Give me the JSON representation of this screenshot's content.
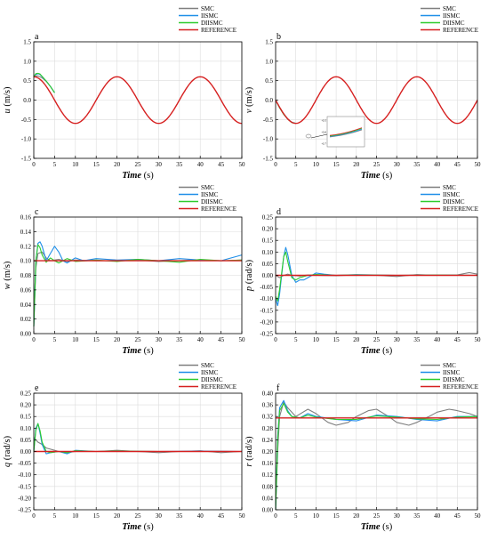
{
  "colors": {
    "SMC": "#7f7f7f",
    "IISMC": "#1f8fe8",
    "DIISMC": "#2ecc2e",
    "REFERENCE": "#d62020",
    "grid": "#dcdcdc",
    "axis": "#000000"
  },
  "legend_labels": [
    "SMC",
    "IISMC",
    "DIISMC",
    "REFERENCE"
  ],
  "chart_data": [
    {
      "panel": "a",
      "type": "line",
      "ylabel_sym": "u",
      "ylabel_unit": " (m/s)",
      "xlabel": "Time",
      "xunit": " (s)",
      "xlim": [
        0,
        50
      ],
      "ylim": [
        -1.5,
        1.5
      ],
      "yticks": [
        -1.5,
        -1.0,
        -0.5,
        0.0,
        0.5,
        1.0,
        1.5
      ],
      "xticks": [
        0,
        5,
        10,
        15,
        20,
        25,
        30,
        35,
        40,
        45,
        50
      ],
      "ydec": 1,
      "grid": true,
      "reference": "0.6cos(2*pi*t/20)",
      "series": [
        {
          "name": "SMC",
          "x": [
            0,
            0.5,
            1,
            1.5,
            2,
            3,
            4,
            5
          ],
          "y": [
            0.6,
            0.62,
            0.62,
            0.6,
            0.57,
            0.48,
            0.35,
            0.19
          ]
        },
        {
          "name": "IISMC",
          "x": [
            0,
            0.5,
            1,
            1.5,
            2,
            3,
            4,
            5
          ],
          "y": [
            0.6,
            0.66,
            0.68,
            0.66,
            0.6,
            0.49,
            0.35,
            0.19
          ]
        },
        {
          "name": "DIISMC",
          "x": [
            0,
            0.5,
            1,
            1.5,
            2,
            3,
            4,
            5
          ],
          "y": [
            0.6,
            0.68,
            0.69,
            0.67,
            0.61,
            0.49,
            0.35,
            0.19
          ]
        },
        {
          "name": "REFERENCE",
          "x": [
            0,
            2.5,
            5,
            7.5,
            10,
            12.5,
            15,
            17.5,
            20,
            22.5,
            25,
            27.5,
            30,
            32.5,
            35,
            37.5,
            40,
            42.5,
            45,
            47.5,
            50
          ],
          "y": [
            0.6,
            0.42,
            0.0,
            -0.42,
            -0.6,
            -0.42,
            0.0,
            0.42,
            0.6,
            0.42,
            0.0,
            -0.42,
            -0.6,
            -0.42,
            0.0,
            0.42,
            0.6,
            0.42,
            0.0,
            -0.42,
            -0.6
          ]
        }
      ],
      "inset": false
    },
    {
      "panel": "b",
      "type": "line",
      "ylabel_sym": "v",
      "ylabel_unit": " (m/s)",
      "xlabel": "Time",
      "xunit": " (s)",
      "xlim": [
        0,
        50
      ],
      "ylim": [
        -1.5,
        1.5
      ],
      "yticks": [
        -1.5,
        -1.0,
        -0.5,
        0.0,
        0.5,
        1.0,
        1.5
      ],
      "xticks": [
        0,
        5,
        10,
        15,
        20,
        25,
        30,
        35,
        40,
        45,
        50
      ],
      "ydec": 1,
      "grid": true,
      "reference": "0.6sin(2*pi*t/20)",
      "series": [
        {
          "name": "SMC",
          "x": [
            0,
            1,
            2,
            3,
            4,
            5
          ],
          "y": [
            0.0,
            -0.19,
            -0.35,
            -0.48,
            -0.57,
            -0.6
          ]
        },
        {
          "name": "IISMC",
          "x": [
            0,
            1,
            2,
            3,
            4,
            5
          ],
          "y": [
            0.0,
            -0.2,
            -0.36,
            -0.49,
            -0.57,
            -0.6
          ]
        },
        {
          "name": "DIISMC",
          "x": [
            0,
            1,
            2,
            3,
            4,
            5
          ],
          "y": [
            0.0,
            -0.2,
            -0.37,
            -0.49,
            -0.58,
            -0.6
          ]
        },
        {
          "name": "REFERENCE",
          "x": [
            0,
            5,
            10,
            15,
            20,
            25,
            30,
            35,
            40,
            45,
            50
          ],
          "y": [
            0.0,
            -0.6,
            0.0,
            0.6,
            0.0,
            -0.6,
            0.0,
            0.6,
            0.0,
            -0.6,
            0.0
          ]
        }
      ],
      "inset": true,
      "inset_yticks": [
        "-0.5",
        "-0.6",
        "-0.7"
      ]
    },
    {
      "panel": "c",
      "type": "line",
      "ylabel_sym": "w",
      "ylabel_unit": " (m/s)",
      "xlabel": "Time",
      "xunit": " (s)",
      "xlim": [
        0,
        50
      ],
      "ylim": [
        0.0,
        0.16
      ],
      "yticks": [
        0.0,
        0.02,
        0.04,
        0.06,
        0.08,
        0.1,
        0.12,
        0.14,
        0.16
      ],
      "xticks": [
        0,
        5,
        10,
        15,
        20,
        25,
        30,
        35,
        40,
        45,
        50
      ],
      "ydec": 2,
      "grid": true,
      "series": [
        {
          "name": "SMC",
          "x": [
            0,
            0.5,
            1,
            2,
            3,
            4,
            6,
            8,
            10,
            15,
            20,
            25,
            30,
            35,
            40,
            45,
            50
          ],
          "y": [
            0.01,
            0.09,
            0.11,
            0.112,
            0.104,
            0.1,
            0.102,
            0.099,
            0.101,
            0.1,
            0.1,
            0.101,
            0.099,
            0.1,
            0.101,
            0.1,
            0.101
          ]
        },
        {
          "name": "IISMC",
          "x": [
            0,
            0.5,
            1,
            1.5,
            2,
            3,
            4,
            5,
            6,
            7,
            8,
            10,
            12,
            15,
            20,
            25,
            30,
            35,
            40,
            45,
            50
          ],
          "y": [
            0.01,
            0.1,
            0.124,
            0.126,
            0.12,
            0.1,
            0.11,
            0.12,
            0.112,
            0.1,
            0.097,
            0.104,
            0.1,
            0.103,
            0.101,
            0.102,
            0.1,
            0.103,
            0.101,
            0.1,
            0.108
          ]
        },
        {
          "name": "DIISMC",
          "x": [
            0,
            0.5,
            1,
            1.5,
            2,
            3,
            4,
            5,
            6,
            8,
            10,
            15,
            20,
            25,
            30,
            35,
            40,
            45,
            50
          ],
          "y": [
            0.01,
            0.1,
            0.122,
            0.118,
            0.108,
            0.098,
            0.104,
            0.1,
            0.097,
            0.103,
            0.099,
            0.101,
            0.099,
            0.102,
            0.1,
            0.098,
            0.102,
            0.1,
            0.101
          ]
        },
        {
          "name": "REFERENCE",
          "x": [
            0,
            50
          ],
          "y": [
            0.1,
            0.1
          ]
        }
      ],
      "inset": false
    },
    {
      "panel": "d",
      "type": "line",
      "ylabel_sym": "p",
      "ylabel_unit": " (rad/s)",
      "xlabel": "Time",
      "xunit": " (s)",
      "xlim": [
        0,
        50
      ],
      "ylim": [
        -0.25,
        0.25
      ],
      "yticks": [
        -0.25,
        -0.2,
        -0.15,
        -0.1,
        -0.05,
        0.0,
        0.05,
        0.1,
        0.15,
        0.2,
        0.25
      ],
      "xticks": [
        0,
        5,
        10,
        15,
        20,
        25,
        30,
        35,
        40,
        45,
        50
      ],
      "ydec": 2,
      "grid": true,
      "series": [
        {
          "name": "SMC",
          "x": [
            0,
            1,
            2,
            3,
            4,
            6,
            8,
            10,
            15,
            20,
            25,
            30,
            35,
            40,
            45,
            48,
            50
          ],
          "y": [
            0.0,
            -0.01,
            0.0,
            0.005,
            0.0,
            -0.003,
            0.002,
            0.0,
            -0.002,
            0.002,
            0.0,
            -0.005,
            0.003,
            0.0,
            0.002,
            0.012,
            0.005
          ]
        },
        {
          "name": "IISMC",
          "x": [
            0,
            0.5,
            1,
            2,
            2.5,
            3,
            4,
            5,
            6,
            7,
            8,
            10,
            12,
            15,
            20,
            30,
            40,
            50
          ],
          "y": [
            -0.1,
            -0.13,
            -0.08,
            0.08,
            0.12,
            0.09,
            0.0,
            -0.03,
            -0.02,
            -0.02,
            -0.01,
            0.01,
            0.005,
            0.0,
            0.003,
            0.0,
            0.002,
            0.0
          ]
        },
        {
          "name": "DIISMC",
          "x": [
            0,
            0.5,
            1,
            2,
            2.5,
            3,
            4,
            5,
            6,
            8,
            10,
            15,
            20,
            30,
            40,
            50
          ],
          "y": [
            -0.09,
            -0.11,
            -0.06,
            0.08,
            0.1,
            0.06,
            -0.01,
            -0.02,
            -0.01,
            0.0,
            0.004,
            0.0,
            0.002,
            0.0,
            0.001,
            0.0
          ]
        },
        {
          "name": "REFERENCE",
          "x": [
            0,
            50
          ],
          "y": [
            0.0,
            0.0
          ]
        }
      ],
      "inset": false
    },
    {
      "panel": "e",
      "type": "line",
      "ylabel_sym": "q",
      "ylabel_unit": " (rad/s)",
      "xlabel": "Time",
      "xunit": " (s)",
      "xlim": [
        0,
        50
      ],
      "ylim": [
        -0.25,
        0.25
      ],
      "yticks": [
        -0.25,
        -0.2,
        -0.15,
        -0.1,
        -0.05,
        0.0,
        0.05,
        0.1,
        0.15,
        0.2,
        0.25
      ],
      "xticks": [
        0,
        5,
        10,
        15,
        20,
        25,
        30,
        35,
        40,
        45,
        50
      ],
      "ydec": 2,
      "grid": true,
      "series": [
        {
          "name": "SMC",
          "x": [
            0,
            0.5,
            1,
            2,
            3,
            4,
            5,
            6,
            8,
            10,
            15,
            20,
            25,
            30,
            35,
            40,
            45,
            50
          ],
          "y": [
            0.06,
            0.05,
            0.04,
            0.03,
            0.015,
            0.01,
            0.005,
            0.0,
            -0.005,
            0.0,
            0.0,
            0.005,
            0.0,
            -0.005,
            0.0,
            0.003,
            -0.005,
            0.0
          ]
        },
        {
          "name": "IISMC",
          "x": [
            0,
            0.5,
            1,
            1.5,
            2,
            3,
            4,
            6,
            8,
            10,
            15,
            20,
            30,
            40,
            50
          ],
          "y": [
            0.0,
            0.1,
            0.12,
            0.08,
            0.03,
            -0.01,
            -0.005,
            0.0,
            -0.01,
            0.005,
            0.0,
            0.002,
            0.0,
            0.002,
            0.0
          ]
        },
        {
          "name": "DIISMC",
          "x": [
            0,
            0.5,
            1,
            1.5,
            2,
            3,
            4,
            6,
            8,
            10,
            15,
            20,
            30,
            40,
            50
          ],
          "y": [
            0.0,
            0.09,
            0.12,
            0.09,
            0.04,
            0.0,
            -0.005,
            0.0,
            -0.005,
            0.003,
            0.0,
            0.002,
            0.0,
            0.0,
            0.0
          ]
        },
        {
          "name": "REFERENCE",
          "x": [
            0,
            50
          ],
          "y": [
            0.0,
            0.0
          ]
        }
      ],
      "inset": false
    },
    {
      "panel": "f",
      "type": "line",
      "ylabel_sym": "r",
      "ylabel_unit": " (rad/s)",
      "xlabel": "Time",
      "xunit": " (s)",
      "xlim": [
        0,
        50
      ],
      "ylim": [
        0.0,
        0.4
      ],
      "yticks": [
        0.0,
        0.04,
        0.08,
        0.12,
        0.16,
        0.2,
        0.24,
        0.28,
        0.32,
        0.36,
        0.4
      ],
      "xticks": [
        0,
        5,
        10,
        15,
        20,
        25,
        30,
        35,
        40,
        45,
        50
      ],
      "ydec": 2,
      "grid": true,
      "series": [
        {
          "name": "SMC",
          "x": [
            0,
            0.5,
            1,
            2,
            3,
            5,
            8,
            10,
            13,
            15,
            18,
            20,
            23,
            25,
            28,
            30,
            33,
            35,
            38,
            40,
            43,
            45,
            48,
            50
          ],
          "y": [
            0.0,
            0.2,
            0.32,
            0.37,
            0.35,
            0.32,
            0.345,
            0.33,
            0.3,
            0.29,
            0.3,
            0.32,
            0.34,
            0.345,
            0.32,
            0.3,
            0.29,
            0.3,
            0.32,
            0.335,
            0.345,
            0.34,
            0.33,
            0.32
          ]
        },
        {
          "name": "IISMC",
          "x": [
            0,
            0.5,
            1,
            2,
            3,
            4,
            6,
            8,
            10,
            15,
            20,
            25,
            30,
            35,
            40,
            45,
            50
          ],
          "y": [
            0.0,
            0.25,
            0.35,
            0.375,
            0.34,
            0.32,
            0.315,
            0.33,
            0.32,
            0.31,
            0.305,
            0.325,
            0.32,
            0.31,
            0.305,
            0.32,
            0.32
          ]
        },
        {
          "name": "DIISMC",
          "x": [
            0,
            0.5,
            1,
            2,
            3,
            4,
            6,
            8,
            10,
            15,
            20,
            25,
            30,
            35,
            40,
            45,
            50
          ],
          "y": [
            0.0,
            0.24,
            0.34,
            0.365,
            0.335,
            0.32,
            0.315,
            0.325,
            0.318,
            0.31,
            0.31,
            0.322,
            0.318,
            0.312,
            0.31,
            0.318,
            0.32
          ]
        },
        {
          "name": "REFERENCE",
          "x": [
            0,
            50
          ],
          "y": [
            0.315,
            0.315
          ]
        }
      ],
      "inset": false
    }
  ]
}
